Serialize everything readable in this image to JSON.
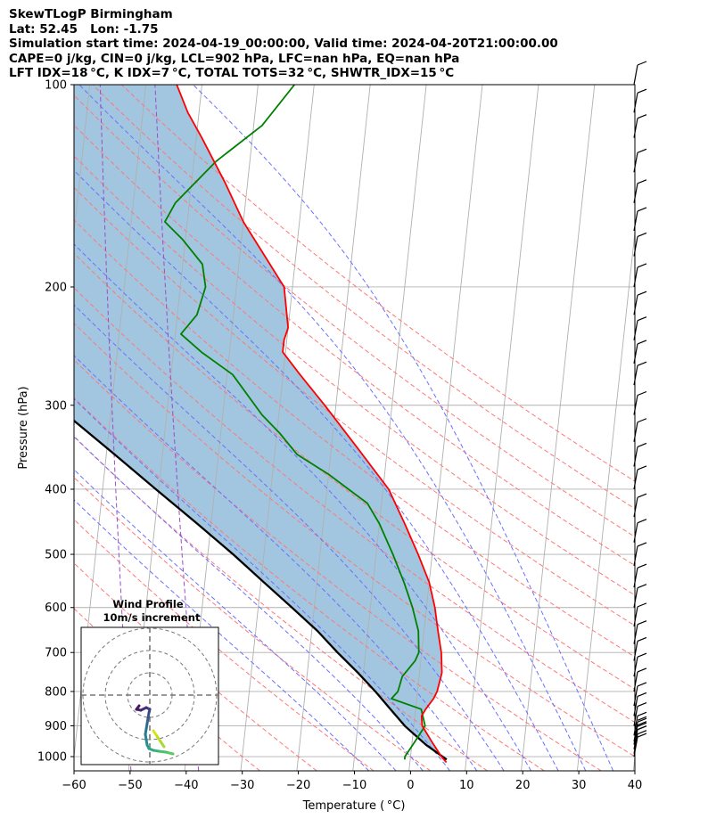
{
  "title_lines": [
    "SkewTLogP Birmingham",
    "Lat: 52.45   Lon: -1.75",
    "Simulation start time: 2024-04-19_00:00:00, Valid time: 2024-04-20T21:00:00.00",
    "CAPE=0 j/kg, CIN=0 j/kg, LCL=902 hPa, LFC=nan hPa, EQ=nan hPa",
    "LFT IDX=18 °C, K IDX=7 °C, TOTAL TOTS=32 °C, SHWTR_IDX=15 °C"
  ],
  "colors": {
    "temperature": "#ff0000",
    "dewpoint": "#008000",
    "parcel": "#000000",
    "shade": "#a2c6df",
    "dry_adiabat": "#ff7777",
    "moist_adiabat": "#6a70ff",
    "mixing_ratio": "#9a4dc8",
    "isotherm": "#b0b0b0"
  },
  "hodograph": {
    "title": "Wind Profile",
    "subtitle": "10m/s increment"
  },
  "chart_data": {
    "type": "line",
    "chart_kind": "skew-T log-P diagram",
    "xlabel": "Temperature ( °C)",
    "ylabel": "Pressure (hPa)",
    "xlim": [
      -60,
      40
    ],
    "ylim": [
      1050,
      100
    ],
    "yscale": "log",
    "x_ticks": [
      -60,
      -50,
      -40,
      -30,
      -20,
      -10,
      0,
      10,
      20,
      30,
      40
    ],
    "x_tick_labels": [
      "−60",
      "−50",
      "−40",
      "−30",
      "−20",
      "−10",
      "0",
      "10",
      "20",
      "30",
      "40"
    ],
    "y_ticks": [
      100,
      200,
      300,
      400,
      500,
      600,
      700,
      800,
      900,
      1000
    ],
    "grid": true,
    "series": [
      {
        "role": "temperature",
        "points": [
          [
            1020,
            6.5
          ],
          [
            1000,
            5.5
          ],
          [
            950,
            3.5
          ],
          [
            900,
            1.5
          ],
          [
            870,
            1.2
          ],
          [
            850,
            1.8
          ],
          [
            820,
            3.0
          ],
          [
            800,
            3.5
          ],
          [
            750,
            4.0
          ],
          [
            700,
            3.5
          ],
          [
            650,
            2.5
          ],
          [
            600,
            1.5
          ],
          [
            550,
            0.0
          ],
          [
            500,
            -2.5
          ],
          [
            450,
            -5.5
          ],
          [
            400,
            -9.0
          ],
          [
            350,
            -15.0
          ],
          [
            300,
            -22.0
          ],
          [
            270,
            -27.0
          ],
          [
            250,
            -30.5
          ],
          [
            240,
            -30.5
          ],
          [
            230,
            -30.0
          ],
          [
            200,
            -31.5
          ],
          [
            180,
            -35.5
          ],
          [
            160,
            -40.0
          ],
          [
            140,
            -44.0
          ],
          [
            120,
            -49.0
          ],
          [
            110,
            -52.0
          ],
          [
            100,
            -54.5
          ]
        ]
      },
      {
        "role": "dewpoint",
        "points": [
          [
            1010,
            -1.0
          ],
          [
            1000,
            -1.0
          ],
          [
            950,
            0.5
          ],
          [
            900,
            2.0
          ],
          [
            850,
            1.0
          ],
          [
            820,
            -4.5
          ],
          [
            800,
            -3.5
          ],
          [
            760,
            -3.0
          ],
          [
            720,
            -1.0
          ],
          [
            700,
            -0.5
          ],
          [
            650,
            -1.0
          ],
          [
            600,
            -2.5
          ],
          [
            550,
            -4.5
          ],
          [
            500,
            -7.0
          ],
          [
            450,
            -10.0
          ],
          [
            420,
            -12.5
          ],
          [
            380,
            -20.0
          ],
          [
            355,
            -26.0
          ],
          [
            330,
            -29.5
          ],
          [
            310,
            -33.0
          ],
          [
            270,
            -39.0
          ],
          [
            250,
            -45.0
          ],
          [
            235,
            -49.0
          ],
          [
            220,
            -46.5
          ],
          [
            200,
            -45.5
          ],
          [
            185,
            -46.5
          ],
          [
            170,
            -50.5
          ],
          [
            160,
            -54.0
          ],
          [
            150,
            -52.5
          ],
          [
            130,
            -46.0
          ],
          [
            115,
            -38.5
          ],
          [
            100,
            -33.5
          ]
        ]
      },
      {
        "role": "parcel",
        "points": [
          [
            1010,
            6.5
          ],
          [
            960,
            2.5
          ],
          [
            902,
            -1.5
          ],
          [
            850,
            -4.5
          ],
          [
            800,
            -7.5
          ],
          [
            750,
            -11.0
          ],
          [
            700,
            -15.0
          ],
          [
            650,
            -19.0
          ],
          [
            600,
            -24.0
          ],
          [
            550,
            -29.5
          ],
          [
            500,
            -35.5
          ],
          [
            450,
            -42.5
          ],
          [
            400,
            -50.5
          ],
          [
            350,
            -59.5
          ],
          [
            300,
            -70.0
          ],
          [
            250,
            -82.0
          ],
          [
            200,
            -96.0
          ],
          [
            150,
            -114.0
          ],
          [
            100,
            -139.0
          ]
        ]
      }
    ],
    "background_lines": {
      "isotherms_C": [
        -130,
        -120,
        -110,
        -100,
        -90,
        -80,
        -70,
        -60,
        -50,
        -40,
        -30,
        -20,
        -10,
        0,
        10,
        20,
        30,
        40
      ],
      "dry_adiabats_C_at_1000hPa": [
        -30,
        -20,
        -10,
        0,
        10,
        20,
        30,
        40,
        50,
        60,
        70,
        80,
        90,
        100,
        110,
        120,
        130
      ],
      "moist_adiabats_C_at_1000hPa": [
        -10,
        -5,
        0,
        5,
        10,
        15,
        20,
        25,
        30,
        35
      ],
      "mixing_ratio_lines_C_at_1000hPa": [
        -50,
        -38
      ]
    },
    "wind_barbs": {
      "pressures_hPa": [
        1000,
        990,
        975,
        960,
        950,
        930,
        900,
        870,
        840,
        800,
        760,
        720,
        680,
        640,
        600,
        560,
        520,
        480,
        440,
        400,
        370,
        340,
        310,
        280,
        260,
        240,
        220,
        200,
        180,
        165,
        150,
        135,
        120,
        110,
        100
      ],
      "barb_count_per_level": [
        1,
        1,
        1,
        2,
        2,
        2,
        1,
        1,
        1,
        1,
        1,
        1,
        1,
        1,
        1,
        1,
        1,
        1,
        1,
        1,
        1,
        1,
        1,
        1,
        1,
        1,
        1,
        1,
        1,
        1,
        1,
        1,
        1,
        1,
        1
      ]
    },
    "hodograph_rings_ms": [
      10,
      20,
      30
    ]
  }
}
